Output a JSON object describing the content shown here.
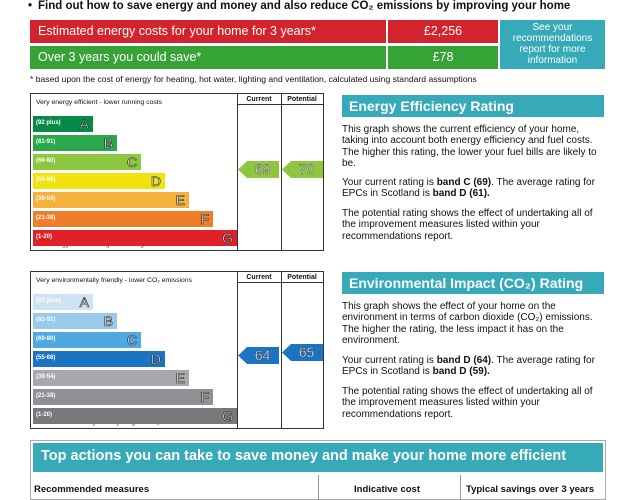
{
  "intro": "Find out how to save energy and money and also reduce CO₂ emissions by improving your home",
  "costs": {
    "row1_label": "Estimated energy costs for your home for 3 years*",
    "row1_value": "£2,256",
    "row2_label": "Over 3 years you could save*",
    "row2_value": "£78",
    "see_box": "See your recommendations report for more information",
    "footnote": "* based upon the cost of energy for heating, hot water, lighting and ventilation, calculated using standard assumptions"
  },
  "efficiency": {
    "top_text": "Very energy efficient - lower running costs",
    "bottom_text": "Not energy efficient - higher running costs",
    "col_current": "Current",
    "col_potential": "Potential",
    "current": 69,
    "potential": 70,
    "bands": [
      {
        "range": "(92 plus)",
        "letter": "A",
        "color": "#078a47"
      },
      {
        "range": "(81-91)",
        "letter": "B",
        "color": "#2ba84a"
      },
      {
        "range": "(69-80)",
        "letter": "C",
        "color": "#8dc63f"
      },
      {
        "range": "(55-68)",
        "letter": "D",
        "color": "#f2e30f"
      },
      {
        "range": "(39-54)",
        "letter": "E",
        "color": "#f6b13b"
      },
      {
        "range": "(21-38)",
        "letter": "F",
        "color": "#ef7d2a"
      },
      {
        "range": "(1-20)",
        "letter": "G",
        "color": "#e02127"
      }
    ],
    "heading": "Energy Efficiency Rating",
    "para1": "This graph shows the current efficiency of your home, taking into account both energy efficiency and fuel costs. The higher this rating, the lower your fuel bills are likely to be.",
    "para2_pre": "Your current rating is ",
    "para2_bold1": "band C (69)",
    "para2_mid": ". The average rating for EPCs in Scotland is ",
    "para2_bold2": "band D (61).",
    "para3": "The potential rating shows the effect of undertaking all of the improvement measures listed within your recommendations report."
  },
  "environment": {
    "top_text": "Very environmentally friendly - lower CO₂ emissions",
    "bottom_text": "Not environmentally friendly - higher CO₂ emissions",
    "col_current": "Current",
    "col_potential": "Potential",
    "current": 64,
    "potential": 65,
    "bands": [
      {
        "range": "(92 plus)",
        "letter": "A",
        "color": "#cfe3f5"
      },
      {
        "range": "(81-91)",
        "letter": "B",
        "color": "#9ac9ee"
      },
      {
        "range": "(69-80)",
        "letter": "C",
        "color": "#4fa9e0"
      },
      {
        "range": "(55-68)",
        "letter": "D",
        "color": "#1a74c2"
      },
      {
        "range": "(39-54)",
        "letter": "E",
        "color": "#a6a8ab"
      },
      {
        "range": "(21-38)",
        "letter": "F",
        "color": "#8e9093"
      },
      {
        "range": "(1-20)",
        "letter": "G",
        "color": "#77797c"
      }
    ],
    "heading": "Environmental Impact (CO₂) Rating",
    "para1": "This graph shows the effect of your home on the environment in terms of carbon dioxide (CO₂) emissions. The higher the rating, the less impact it has on the environment.",
    "para2_pre": "Your current rating is ",
    "para2_bold1": "band D (64)",
    "para2_mid": ". The average rating for EPCs in Scotland is ",
    "para2_bold2": "band D (59).",
    "para3": "The potential rating shows the effect of undertaking all of the improvement measures listed within your recommendations report."
  },
  "actions": {
    "heading": "Top actions you can take to save money and make your home more efficient",
    "col1": "Recommended measures",
    "col2": "Indicative cost",
    "col3": "Typical savings over 3 years"
  }
}
